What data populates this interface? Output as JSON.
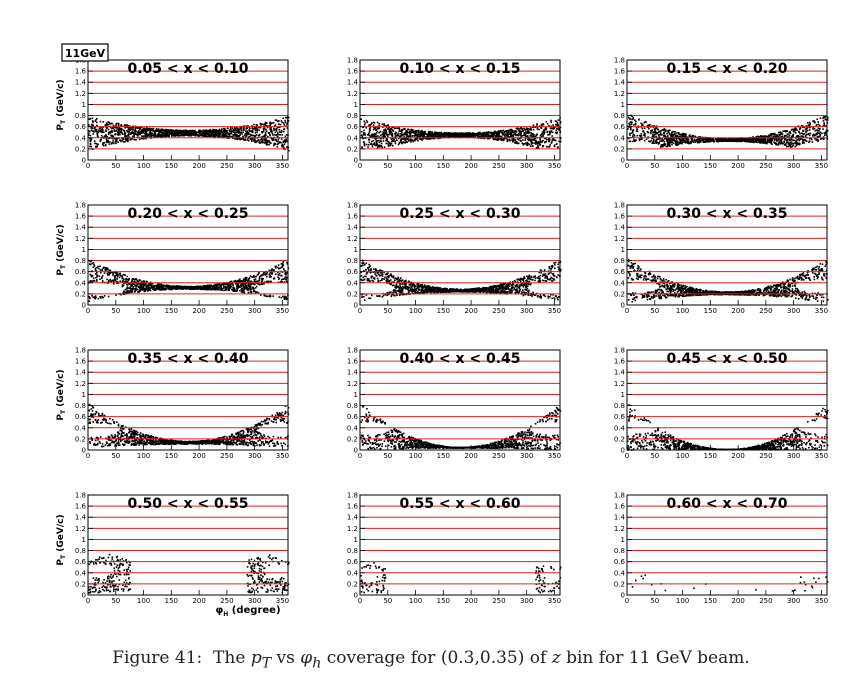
{
  "badge": "11GeV",
  "caption": {
    "prefix": "Figure 41:",
    "text_1": "The ",
    "var_pt": "p",
    "var_pt_sub": "T",
    "text_2": " vs ",
    "var_phi": "φ",
    "var_phi_sub": "h",
    "text_3": " coverage for (0.3,0.35) of ",
    "var_z": "z",
    "text_4": " bin for 11 GeV beam."
  },
  "axes": {
    "ylabel": "P",
    "ylabel_sub": "T",
    "ylabel_unit": "(GeV/c)",
    "xlabel": "φ",
    "xlabel_sub": "H",
    "xlabel_unit": "(degree)",
    "xlim": [
      0,
      360
    ],
    "ylim": [
      0,
      1.8
    ],
    "x_ticks": [
      "0",
      "50",
      "100",
      "150",
      "200",
      "250",
      "300",
      "350"
    ],
    "y_ticks": [
      "0",
      "0.2",
      "0.4",
      "0.6",
      "0.8",
      "1",
      "1.2",
      "1.4",
      "1.6",
      "1.8"
    ],
    "red_grid_lines": [
      0.2,
      0.4,
      0.6,
      0.8,
      1.0,
      1.2,
      1.4,
      1.6
    ],
    "grid_color": "#e02020",
    "scatter_color": "#000000"
  },
  "chart_data": [
    {
      "type": "scatter",
      "title": "0.05 < x < 0.10",
      "lower_min": 0.45,
      "lower_edge": 0.18,
      "upper_min": 0.55,
      "upper_edge": 0.8,
      "hole": 0,
      "hole_y": 0,
      "hole_w": 0,
      "density": 1.0
    },
    {
      "type": "scatter",
      "title": "0.10 < x < 0.15",
      "lower_min": 0.42,
      "lower_edge": 0.08,
      "upper_min": 0.5,
      "upper_edge": 0.78,
      "hole": 1,
      "hole_y": 0.12,
      "hole_w": 40,
      "density": 1.0
    },
    {
      "type": "scatter",
      "title": "0.15 < x < 0.20",
      "lower_min": 0.35,
      "lower_edge": 0.08,
      "upper_min": 0.4,
      "upper_edge": 0.85,
      "hole": 1,
      "hole_y": 0.22,
      "hole_w": 45,
      "density": 1.0
    },
    {
      "type": "scatter",
      "title": "0.20 < x < 0.25",
      "lower_min": 0.3,
      "lower_edge": 0.08,
      "upper_min": 0.35,
      "upper_edge": 0.85,
      "hole": 1,
      "hole_y": 0.3,
      "hole_w": 45,
      "density": 1.0
    },
    {
      "type": "scatter",
      "title": "0.25 < x < 0.30",
      "lower_min": 0.25,
      "lower_edge": 0.08,
      "upper_min": 0.3,
      "upper_edge": 0.85,
      "hole": 1,
      "hole_y": 0.32,
      "hole_w": 45,
      "density": 1.0
    },
    {
      "type": "scatter",
      "title": "0.30 < x < 0.35",
      "lower_min": 0.2,
      "lower_edge": 0.05,
      "upper_min": 0.25,
      "upper_edge": 0.85,
      "hole": 1,
      "hole_y": 0.35,
      "hole_w": 42,
      "density": 1.0
    },
    {
      "type": "scatter",
      "title": "0.35 < x < 0.40",
      "lower_min": 0.12,
      "lower_edge": 0.05,
      "upper_min": 0.17,
      "upper_edge": 0.85,
      "hole": 1,
      "hole_y": 0.38,
      "hole_w": 40,
      "density": 0.95
    },
    {
      "type": "scatter",
      "title": "0.40 < x < 0.45",
      "lower_min": 0.05,
      "lower_edge": 0.02,
      "upper_min": 0.06,
      "upper_edge": 0.85,
      "hole": 1,
      "hole_y": 0.4,
      "hole_w": 40,
      "density": 0.9
    },
    {
      "type": "scatter",
      "title": "0.45 < x < 0.50",
      "lower_min": 0.02,
      "lower_edge": 0.01,
      "upper_min": 0.02,
      "upper_edge": 0.85,
      "hole": 1,
      "hole_y": 0.42,
      "hole_w": 38,
      "density": 0.8
    },
    {
      "type": "scatter",
      "title": "0.50 < x < 0.55",
      "lower_min": 0,
      "lower_edge": 0,
      "upper_min": 0,
      "upper_edge": 0.75,
      "hole": 1,
      "hole_y": 0.45,
      "hole_w": 30,
      "density": 0.7,
      "lobe_width": 75
    },
    {
      "type": "scatter",
      "title": "0.55 < x < 0.60",
      "lower_min": 0,
      "lower_edge": 0,
      "upper_min": 0,
      "upper_edge": 0.6,
      "hole": 1,
      "hole_y": 0.35,
      "hole_w": 14,
      "density": 0.45,
      "lobe_width": 45
    },
    {
      "type": "scatter",
      "title": "0.60 < x < 0.70",
      "lower_min": 0,
      "lower_edge": 0,
      "upper_min": 0,
      "upper_edge": 0.4,
      "hole": 0,
      "hole_y": 0,
      "hole_w": 0,
      "density": 0.04,
      "lobe_width": 70
    }
  ]
}
